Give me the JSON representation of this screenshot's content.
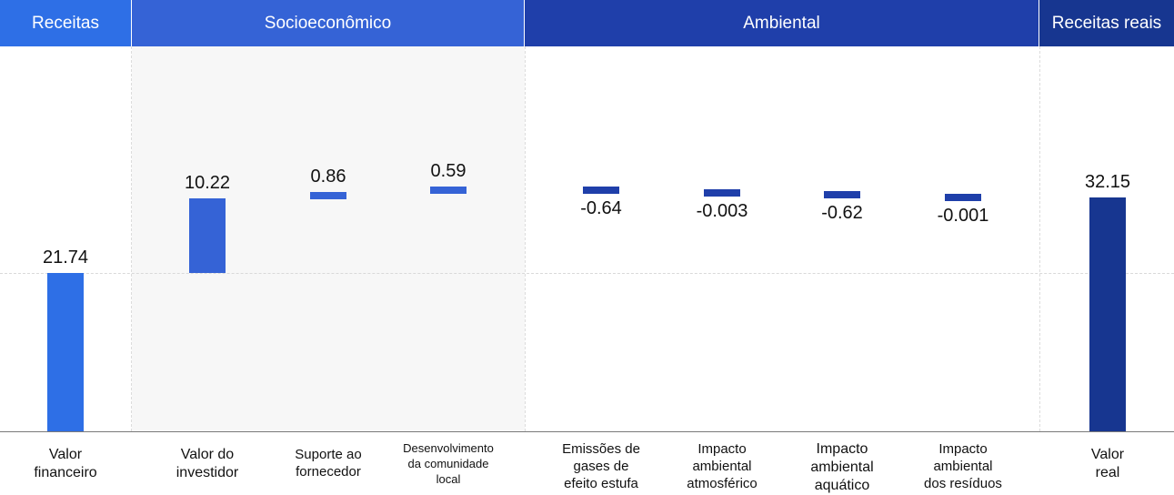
{
  "header": {
    "groups": [
      {
        "label": "Receitas",
        "color": "#2e6fe6"
      },
      {
        "label": "Socioeconômico",
        "color": "#3563d6"
      },
      {
        "label": "Ambiental",
        "color": "#1f3faa"
      },
      {
        "label": "Receitas reais",
        "color": "#173690"
      }
    ]
  },
  "colors": {
    "revenue": "#2e6fe6",
    "socioeconomic": "#3563d6",
    "environmental": "#1f3faa",
    "real": "#173690",
    "panel_bg": "#f7f7f7"
  },
  "chart_data": {
    "type": "bar",
    "subtype": "waterfall",
    "categories": [
      "Valor\nfinanceiro",
      "Valor do\ninvestidor",
      "Suporte ao\nfornecedor",
      "Desenvolvimento\nda comunidade\nlocal",
      "Emissões de\ngases de\nefeito estufa",
      "Impacto\nambiental\natmosférico",
      "Impacto\nambiental\naquático",
      "Impacto\nambiental\ndos resíduos",
      "Valor\nreal"
    ],
    "values": [
      21.74,
      10.22,
      0.86,
      0.59,
      -0.64,
      -0.003,
      -0.62,
      -0.001,
      32.15
    ],
    "value_labels": [
      "21.74",
      "10.22",
      "0.86",
      "0.59",
      "-0.64",
      "-0.003",
      "-0.62",
      "-0.001",
      "32.15"
    ],
    "groups": [
      "Receitas",
      "Socioeconômico",
      "Socioeconômico",
      "Socioeconômico",
      "Ambiental",
      "Ambiental",
      "Ambiental",
      "Ambiental",
      "Receitas reais"
    ],
    "gridlines": [
      21.74
    ],
    "grid": false,
    "legend": "none"
  }
}
